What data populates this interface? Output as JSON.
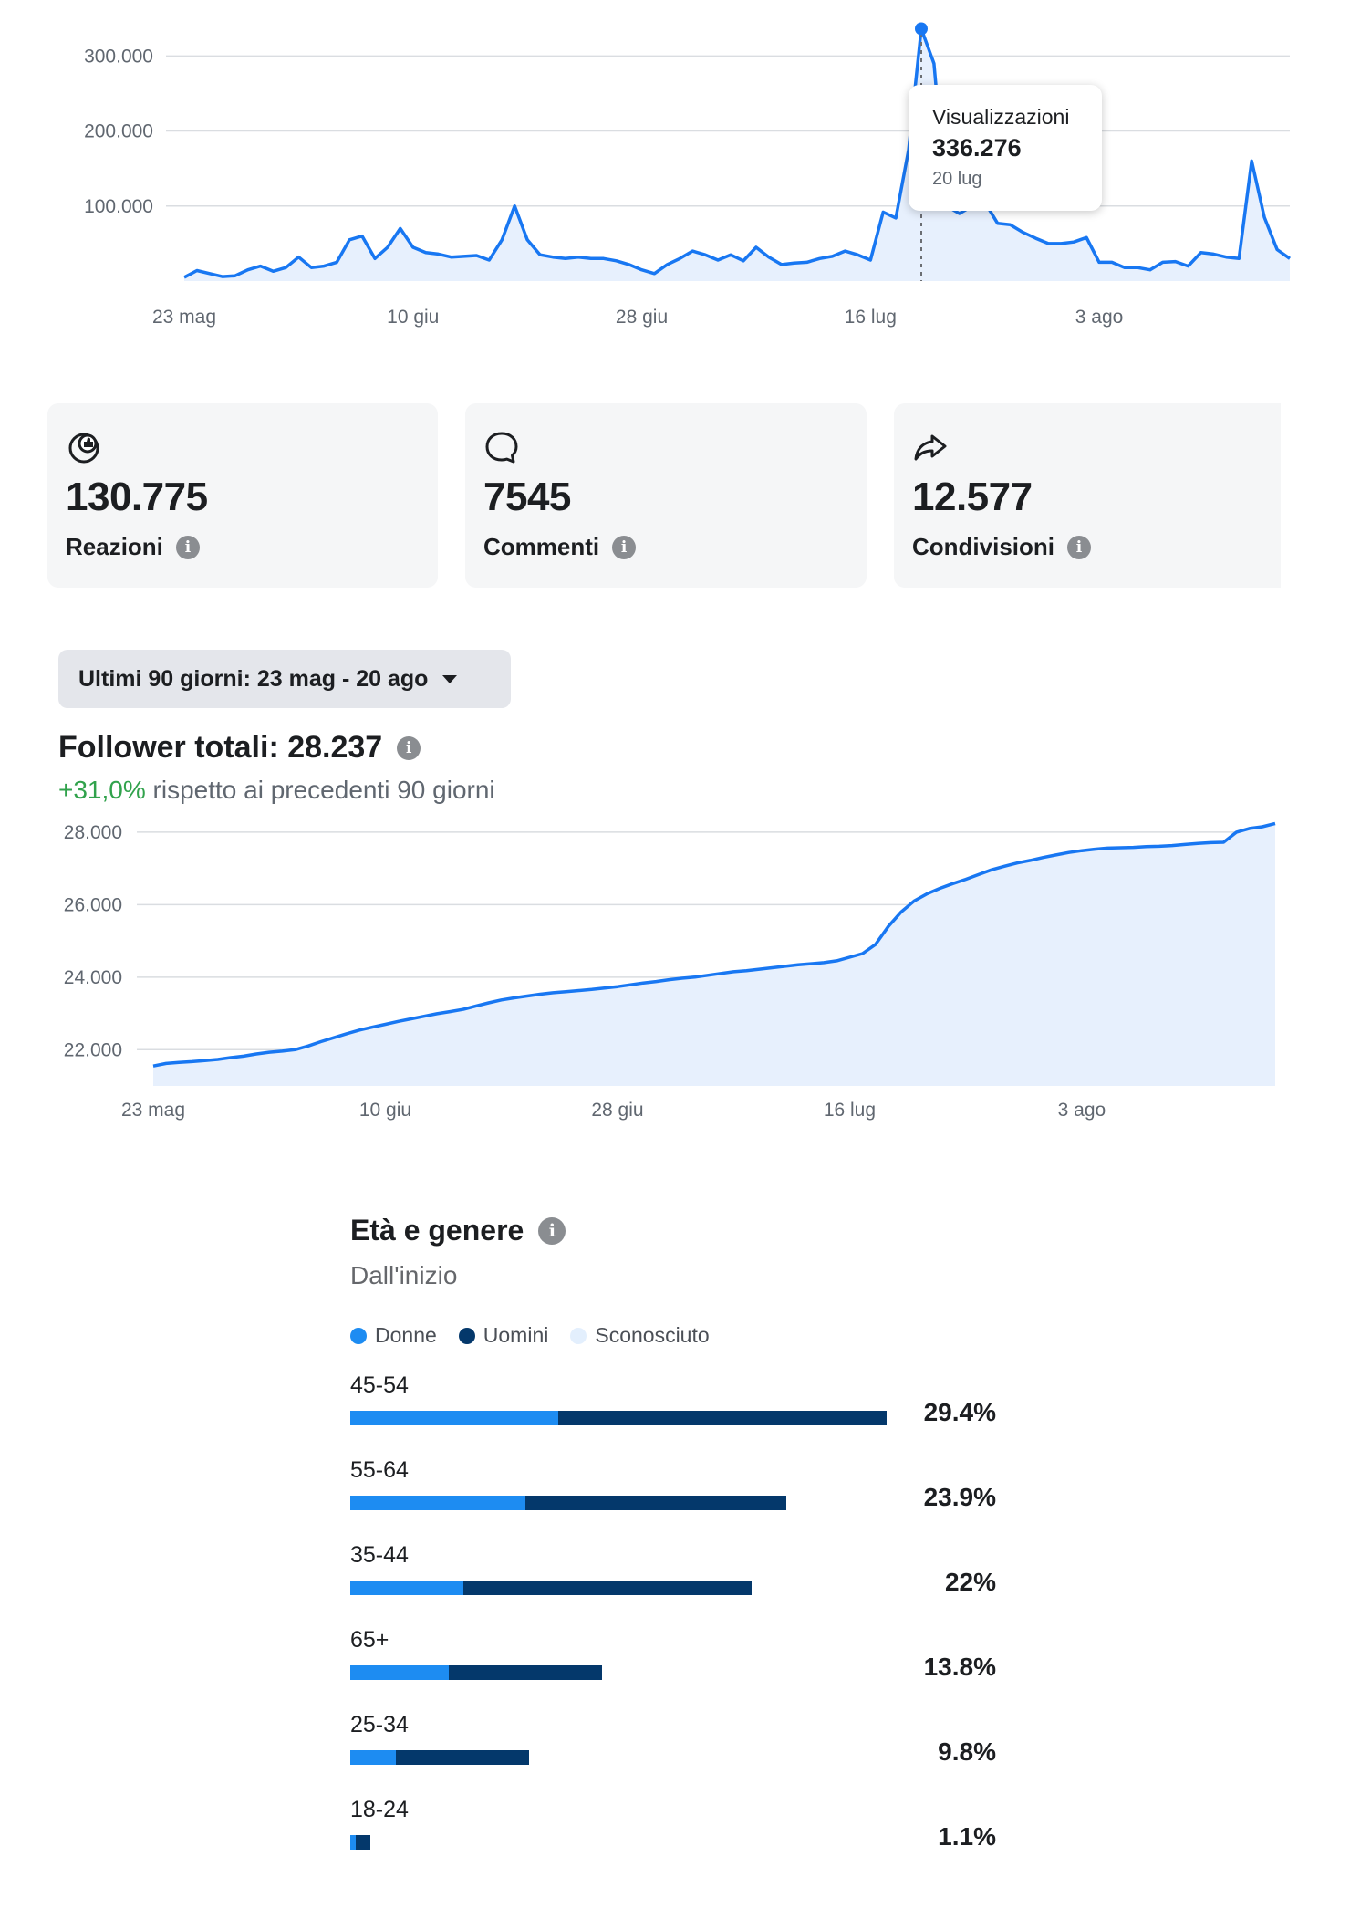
{
  "views_chart": {
    "y_ticks": [
      "300.000",
      "200.000",
      "100.000"
    ],
    "x_ticks": [
      "23 mag",
      "10 giu",
      "28 giu",
      "16 lug",
      "3 ago"
    ],
    "tooltip": {
      "title": "Visualizzazioni",
      "value": "336.276",
      "date": "20 lug"
    }
  },
  "stats": {
    "reactions": {
      "icon": "reactions-icon",
      "value": "130.775",
      "label": "Reazioni"
    },
    "comments": {
      "icon": "comment-bubble-icon",
      "value": "7545",
      "label": "Commenti"
    },
    "shares": {
      "icon": "share-arrow-icon",
      "value": "12.577",
      "label": "Condivisioni"
    }
  },
  "date_range": {
    "label": "Ultimi 90 giorni: 23 mag - 20 ago"
  },
  "followers": {
    "title": "Follower totali: 28.237",
    "change": "+31,0%",
    "change_suffix": " rispetto ai precedenti 90 giorni",
    "y_ticks": [
      "28.000",
      "26.000",
      "24.000",
      "22.000"
    ],
    "x_ticks": [
      "23 mag",
      "10 giu",
      "28 giu",
      "16 lug",
      "3 ago"
    ]
  },
  "demographics": {
    "title": "Età e genere",
    "subtitle": "Dall'inizio",
    "legend": {
      "women": "Donne",
      "men": "Uomini",
      "unknown": "Sconosciuto"
    },
    "rows": [
      {
        "age": "45-54",
        "pct": "29.4%"
      },
      {
        "age": "55-64",
        "pct": "23.9%"
      },
      {
        "age": "35-44",
        "pct": "22%"
      },
      {
        "age": "65+",
        "pct": "13.8%"
      },
      {
        "age": "25-34",
        "pct": "9.8%"
      },
      {
        "age": "18-24",
        "pct": "1.1%"
      }
    ]
  },
  "colors": {
    "line": "#1877f2",
    "fill": "#e7f0fd",
    "women": "#1d8cf2",
    "men": "#04386b",
    "unknown": "#e3effd",
    "positive": "#31a24c"
  },
  "chart_data": [
    {
      "type": "area",
      "title": "",
      "series": [
        {
          "name": "Visualizzazioni",
          "values": [
            5000,
            14000,
            10000,
            6000,
            7000,
            15000,
            20000,
            13000,
            18000,
            32000,
            18000,
            20000,
            25000,
            55000,
            60000,
            30000,
            45000,
            70000,
            45000,
            38000,
            36000,
            32000,
            33000,
            34000,
            28000,
            55000,
            100000,
            55000,
            35000,
            32000,
            30000,
            32000,
            30000,
            30000,
            27000,
            22000,
            15000,
            10000,
            22000,
            30000,
            40000,
            35000,
            28000,
            35000,
            27000,
            45000,
            32000,
            22000,
            24000,
            25000,
            30000,
            33000,
            40000,
            35000,
            28000,
            92000,
            84000,
            175000,
            336276,
            290000,
            100000,
            90000,
            100000,
            105000,
            77000,
            75000,
            65000,
            57000,
            50000,
            50000,
            52000,
            58000,
            25000,
            25000,
            18000,
            18000,
            15000,
            25000,
            26000,
            20000,
            38000,
            36000,
            32000,
            30000,
            160000,
            85000,
            42000,
            30000
          ]
        }
      ],
      "x_start": "23 mag",
      "x_end": "20 ago",
      "ylim": [
        0,
        360000
      ],
      "grid": true
    },
    {
      "type": "area",
      "title": "Follower totali: 28.237",
      "series": [
        {
          "name": "Follower",
          "values": [
            21550,
            21620,
            21650,
            21670,
            21700,
            21730,
            21780,
            21820,
            21880,
            21930,
            21960,
            22000,
            22100,
            22220,
            22330,
            22440,
            22540,
            22620,
            22700,
            22780,
            22850,
            22920,
            22990,
            23050,
            23110,
            23200,
            23290,
            23370,
            23430,
            23480,
            23530,
            23570,
            23600,
            23630,
            23660,
            23700,
            23740,
            23790,
            23840,
            23880,
            23930,
            23970,
            24000,
            24050,
            24100,
            24150,
            24180,
            24220,
            24260,
            24300,
            24340,
            24370,
            24400,
            24450,
            24550,
            24650,
            24900,
            25400,
            25800,
            26100,
            26300,
            26450,
            26580,
            26700,
            26830,
            26960,
            27060,
            27150,
            27220,
            27300,
            27370,
            27440,
            27490,
            27530,
            27560,
            27570,
            27580,
            27600,
            27610,
            27630,
            27660,
            27690,
            27710,
            27720,
            28000,
            28100,
            28150,
            28237
          ]
        }
      ],
      "x_start": "23 mag",
      "x_end": "20 ago",
      "ylim": [
        21000,
        28300
      ],
      "grid": true
    },
    {
      "type": "bar",
      "title": "Età e genere",
      "categories": [
        "45-54",
        "55-64",
        "35-44",
        "65+",
        "25-34",
        "18-24"
      ],
      "series": [
        {
          "name": "Donne",
          "values": [
            11.4,
            9.6,
            6.2,
            5.4,
            2.5,
            0.3
          ]
        },
        {
          "name": "Uomini",
          "values": [
            18.0,
            14.3,
            15.8,
            8.4,
            7.3,
            0.8
          ]
        },
        {
          "name": "Sconosciuto",
          "values": [
            0,
            0,
            0,
            0,
            0,
            0
          ]
        }
      ],
      "totals": [
        29.4,
        23.9,
        22,
        13.8,
        9.8,
        1.1
      ]
    }
  ]
}
